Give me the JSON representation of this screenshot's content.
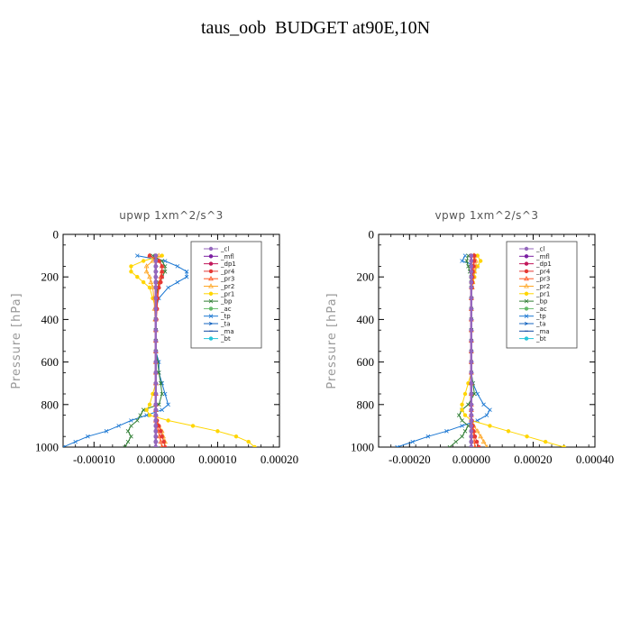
{
  "page": {
    "title": "taus_oob  BUDGET at90E,10N"
  },
  "chart_data": [
    {
      "type": "line",
      "title": "upwp   1xm^2/s^3",
      "xlabel": "",
      "ylabel": "Pressure [hPa]",
      "xlim": [
        -0.00015,
        0.0002
      ],
      "ylim": [
        1000,
        0
      ],
      "xticks": [
        -0.0001,
        0.0,
        0.0001,
        0.0002
      ],
      "xtick_labels": [
        "-0.00010",
        "0.00000",
        "0.00010",
        "0.00020"
      ],
      "yticks": [
        0,
        200,
        400,
        600,
        800,
        1000
      ],
      "ytick_labels": [
        "0",
        "200",
        "400",
        "600",
        "800",
        "1000"
      ],
      "y": [
        100,
        125,
        150,
        175,
        200,
        225,
        250,
        300,
        350,
        400,
        450,
        500,
        550,
        600,
        650,
        700,
        750,
        800,
        825,
        850,
        875,
        900,
        925,
        950,
        975,
        1000
      ],
      "series": [
        {
          "name": "_cl",
          "color": "#9467bd",
          "marker": "circle",
          "values": [
            0,
            0,
            0,
            0,
            0,
            0,
            0,
            0,
            0,
            0,
            0,
            0,
            0,
            0,
            0,
            0,
            0,
            0,
            0,
            0,
            0,
            0,
            0,
            0,
            0,
            0
          ]
        },
        {
          "name": "_mfl",
          "color": "#7b1fa2",
          "marker": "circle",
          "values": [
            0,
            0,
            0,
            0,
            0,
            0,
            0,
            0,
            0,
            0,
            0,
            0,
            0,
            0,
            0,
            0,
            0,
            0,
            0,
            0,
            0,
            0,
            0,
            0,
            0,
            0
          ]
        },
        {
          "name": "_dp1",
          "color": "#c2185b",
          "marker": "circle",
          "values": [
            0,
            0,
            0,
            0,
            0,
            0,
            0,
            0,
            0,
            0,
            0,
            0,
            0,
            0,
            0,
            0,
            0,
            0,
            0,
            0,
            0,
            0,
            0,
            0,
            0,
            0
          ]
        },
        {
          "name": "_pr4",
          "color": "#e53935",
          "marker": "circle",
          "values": [
            -1e-05,
            5e-06,
            1e-05,
            1e-05,
            1e-05,
            8e-06,
            5e-06,
            3e-06,
            2e-06,
            1e-06,
            0,
            0,
            0,
            0,
            0,
            0,
            0,
            0,
            0,
            0,
            2e-06,
            5e-06,
            8e-06,
            1e-05,
            1.3e-05,
            1.5e-05
          ]
        },
        {
          "name": "_pr3",
          "color": "#ff5722",
          "marker": "triangle",
          "values": [
            -1e-05,
            5e-06,
            1e-05,
            1e-05,
            8e-06,
            6e-06,
            4e-06,
            2e-06,
            1e-06,
            0,
            0,
            0,
            0,
            0,
            0,
            0,
            0,
            0,
            0,
            0,
            0,
            2e-06,
            4e-06,
            6e-06,
            8e-06,
            1e-05
          ]
        },
        {
          "name": "_pr2",
          "color": "#ffa726",
          "marker": "triangle",
          "values": [
            5e-06,
            -5e-06,
            -1.5e-05,
            -1.5e-05,
            -1e-05,
            -8e-06,
            -5e-06,
            -3e-06,
            -2e-06,
            -1e-06,
            0,
            0,
            0,
            0,
            0,
            0,
            0,
            0,
            0,
            0,
            0,
            5e-06,
            1e-05,
            1.2e-05,
            1.5e-05,
            1.5e-05
          ]
        },
        {
          "name": "_pr1",
          "color": "#ffd600",
          "marker": "circle",
          "values": [
            1e-05,
            -2e-05,
            -4e-05,
            -4e-05,
            -3e-05,
            -2e-05,
            -1e-05,
            -5e-06,
            0,
            0,
            0,
            0,
            0,
            0,
            0,
            0,
            -5e-06,
            -1e-05,
            -1.5e-05,
            -1e-05,
            2e-05,
            6e-05,
            0.0001,
            0.00013,
            0.00015,
            0.00016
          ]
        },
        {
          "name": "_bp",
          "color": "#2e7d32",
          "marker": "x",
          "values": [
            -5e-06,
            1e-05,
            1.5e-05,
            1.5e-05,
            1e-05,
            5e-06,
            3e-06,
            0,
            0,
            0,
            0,
            0,
            0,
            3e-06,
            5e-06,
            8e-06,
            1e-05,
            5e-06,
            -2e-05,
            -2.5e-05,
            -3e-05,
            -4e-05,
            -4.5e-05,
            -4e-05,
            -4.5e-05,
            -5e-05
          ]
        },
        {
          "name": "_ac",
          "color": "#66bb6a",
          "marker": "circle",
          "values": [
            0,
            0,
            0,
            0,
            0,
            0,
            0,
            0,
            0,
            0,
            0,
            0,
            0,
            0,
            0,
            0,
            0,
            0,
            0,
            0,
            0,
            0,
            0,
            0,
            0,
            0
          ]
        },
        {
          "name": "_tp",
          "color": "#1976d2",
          "marker": "x",
          "values": [
            -3e-05,
            1.5e-05,
            3.5e-05,
            5e-05,
            5e-05,
            3.5e-05,
            2e-05,
            5e-06,
            0,
            0,
            0,
            0,
            0,
            5e-06,
            5e-06,
            1e-05,
            1.5e-05,
            2e-05,
            1e-05,
            -1.5e-05,
            -4e-05,
            -6e-05,
            -8e-05,
            -0.00011,
            -0.00013,
            -0.00015
          ]
        },
        {
          "name": "_ta",
          "color": "#1565c0",
          "marker": "arrow",
          "values": [
            0,
            0,
            0,
            0,
            0,
            0,
            0,
            0,
            0,
            0,
            0,
            0,
            0,
            0,
            0,
            0,
            0,
            0,
            0,
            0,
            0,
            0,
            0,
            0,
            0,
            0
          ]
        },
        {
          "name": "_ma",
          "color": "#0d47a1",
          "marker": "dash",
          "values": [
            0,
            0,
            0,
            0,
            0,
            0,
            0,
            0,
            0,
            0,
            0,
            0,
            0,
            0,
            0,
            0,
            0,
            0,
            0,
            0,
            0,
            0,
            0,
            0,
            0,
            0
          ]
        },
        {
          "name": "_bt",
          "color": "#26c6da",
          "marker": "circle",
          "values": [
            0,
            0,
            0,
            0,
            0,
            0,
            0,
            0,
            0,
            0,
            0,
            0,
            0,
            0,
            0,
            0,
            0,
            0,
            0,
            0,
            0,
            0,
            0,
            0,
            0,
            0
          ]
        }
      ],
      "legend": "top-right",
      "grid": false
    },
    {
      "type": "line",
      "title": "vpwp   1xm^2/s^3",
      "xlabel": "",
      "ylabel": "Pressure [hPa]",
      "xlim": [
        -0.0003,
        0.0004
      ],
      "ylim": [
        1000,
        0
      ],
      "xticks": [
        -0.0002,
        0.0,
        0.0002,
        0.0004
      ],
      "xtick_labels": [
        "-0.00020",
        "0.00000",
        "0.00020",
        "0.00040"
      ],
      "yticks": [
        0,
        200,
        400,
        600,
        800,
        1000
      ],
      "ytick_labels": [
        "0",
        "200",
        "400",
        "600",
        "800",
        "1000"
      ],
      "y": [
        100,
        125,
        150,
        175,
        200,
        225,
        250,
        300,
        350,
        400,
        450,
        500,
        550,
        600,
        650,
        700,
        750,
        800,
        825,
        850,
        875,
        900,
        925,
        950,
        975,
        1000
      ],
      "series": [
        {
          "name": "_cl",
          "color": "#9467bd",
          "marker": "circle",
          "values": [
            0,
            0,
            0,
            0,
            0,
            0,
            0,
            0,
            0,
            0,
            0,
            0,
            0,
            0,
            0,
            0,
            0,
            0,
            0,
            0,
            0,
            0,
            0,
            0,
            0,
            0
          ]
        },
        {
          "name": "_mfl",
          "color": "#7b1fa2",
          "marker": "circle",
          "values": [
            0,
            0,
            0,
            0,
            0,
            0,
            0,
            0,
            0,
            0,
            0,
            0,
            0,
            0,
            0,
            0,
            0,
            0,
            0,
            0,
            0,
            0,
            0,
            0,
            0,
            0
          ]
        },
        {
          "name": "_dp1",
          "color": "#c2185b",
          "marker": "circle",
          "values": [
            0,
            0,
            0,
            0,
            0,
            0,
            0,
            0,
            0,
            0,
            0,
            0,
            0,
            0,
            0,
            0,
            0,
            0,
            0,
            0,
            0,
            0,
            0,
            0,
            0,
            0
          ]
        },
        {
          "name": "_pr4",
          "color": "#e53935",
          "marker": "circle",
          "values": [
            1e-05,
            1e-05,
            8e-06,
            5e-06,
            4e-06,
            3e-06,
            2e-06,
            1e-06,
            0,
            0,
            0,
            0,
            0,
            0,
            0,
            0,
            0,
            0,
            0,
            0,
            2e-06,
            5e-06,
            8e-06,
            1.2e-05,
            1.8e-05,
            2.5e-05
          ]
        },
        {
          "name": "_pr3",
          "color": "#ff5722",
          "marker": "triangle",
          "values": [
            8e-06,
            8e-06,
            6e-06,
            4e-06,
            3e-06,
            2e-06,
            1e-06,
            0,
            0,
            0,
            0,
            0,
            0,
            0,
            0,
            0,
            0,
            0,
            0,
            0,
            0,
            3e-06,
            5e-06,
            8e-06,
            1e-05,
            1.2e-05
          ]
        },
        {
          "name": "_pr2",
          "color": "#ffa726",
          "marker": "triangle",
          "values": [
            1e-05,
            1.5e-05,
            1.5e-05,
            1e-05,
            8e-06,
            5e-06,
            3e-06,
            0,
            0,
            0,
            0,
            0,
            0,
            0,
            0,
            0,
            0,
            0,
            0,
            0,
            0,
            8e-06,
            2e-05,
            3e-05,
            4e-05,
            5e-05
          ]
        },
        {
          "name": "_pr1",
          "color": "#ffd600",
          "marker": "circle",
          "values": [
            2e-05,
            3e-05,
            2e-05,
            1e-05,
            1e-05,
            5e-06,
            2e-06,
            0,
            0,
            0,
            0,
            0,
            0,
            0,
            0,
            -1e-05,
            -2e-05,
            -3e-05,
            -3e-05,
            -2e-05,
            0,
            6e-05,
            0.00012,
            0.00018,
            0.00024,
            0.0003
          ]
        },
        {
          "name": "_bp",
          "color": "#2e7d32",
          "marker": "x",
          "values": [
            -1e-05,
            -1.5e-05,
            -1e-05,
            -5e-06,
            0,
            0,
            0,
            0,
            0,
            0,
            0,
            0,
            0,
            0,
            0,
            5e-06,
            1e-05,
            -1e-05,
            -3e-05,
            -4e-05,
            -3e-05,
            -1e-05,
            -2e-05,
            -3e-05,
            -5e-05,
            -7e-05
          ]
        },
        {
          "name": "_ac",
          "color": "#66bb6a",
          "marker": "circle",
          "values": [
            0,
            0,
            0,
            0,
            0,
            0,
            0,
            0,
            0,
            0,
            0,
            0,
            0,
            0,
            0,
            0,
            0,
            0,
            0,
            0,
            0,
            0,
            0,
            0,
            0,
            0
          ]
        },
        {
          "name": "_tp",
          "color": "#1976d2",
          "marker": "x",
          "values": [
            -2e-05,
            -3e-05,
            2e-05,
            1e-05,
            5e-06,
            3e-06,
            2e-06,
            1e-06,
            0,
            0,
            0,
            0,
            0,
            0,
            0,
            5e-06,
            2e-05,
            4e-05,
            6e-05,
            5e-05,
            2e-05,
            -3e-05,
            -8e-05,
            -0.00014,
            -0.00019,
            -0.00024
          ]
        },
        {
          "name": "_ta",
          "color": "#1565c0",
          "marker": "arrow",
          "values": [
            0,
            0,
            0,
            0,
            0,
            0,
            0,
            0,
            0,
            0,
            0,
            0,
            0,
            0,
            0,
            0,
            0,
            0,
            0,
            0,
            0,
            0,
            0,
            0,
            0,
            0
          ]
        },
        {
          "name": "_ma",
          "color": "#0d47a1",
          "marker": "dash",
          "values": [
            0,
            0,
            0,
            0,
            0,
            0,
            0,
            0,
            0,
            0,
            0,
            0,
            0,
            0,
            0,
            0,
            0,
            0,
            0,
            0,
            0,
            0,
            0,
            0,
            0,
            0
          ]
        },
        {
          "name": "_bt",
          "color": "#26c6da",
          "marker": "circle",
          "values": [
            0,
            0,
            0,
            0,
            0,
            0,
            0,
            0,
            0,
            0,
            0,
            0,
            0,
            0,
            0,
            0,
            0,
            0,
            0,
            0,
            0,
            0,
            0,
            0,
            0,
            0
          ]
        }
      ],
      "legend": "top-right",
      "grid": false
    }
  ]
}
